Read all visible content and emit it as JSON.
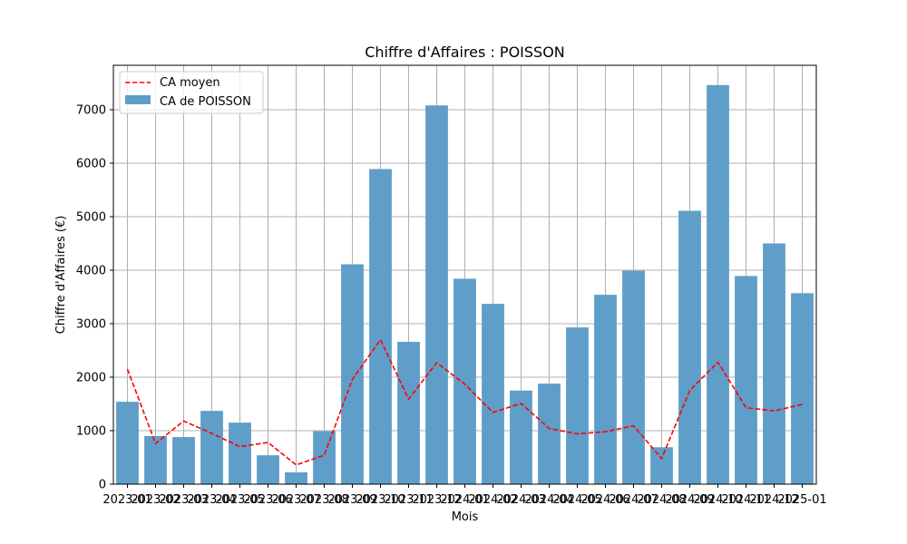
{
  "chart_data": {
    "type": "bar",
    "title": "Chiffre d'Affaires : POISSON",
    "xlabel": "Mois",
    "ylabel": "Chiffre d'Affaires (€)",
    "ylim": [
      0,
      7830
    ],
    "yticks": [
      0,
      1000,
      2000,
      3000,
      4000,
      5000,
      6000,
      7000
    ],
    "grid": true,
    "legend_position": "top-left",
    "categories": [
      "2023-01",
      "2023-02",
      "2023-03",
      "2023-04",
      "2023-05",
      "2023-06",
      "2023-07",
      "2023-08",
      "2023-09",
      "2023-10",
      "2023-11",
      "2023-12",
      "2024-01",
      "2024-02",
      "2024-03",
      "2024-04",
      "2024-05",
      "2024-06",
      "2024-07",
      "2024-08",
      "2024-09",
      "2024-10",
      "2024-11",
      "2024-12",
      "2025-01"
    ],
    "series": [
      {
        "name": "CA moyen",
        "kind": "line",
        "style": "dashed",
        "color": "#ff0000",
        "values": [
          2150,
          760,
          1180,
          950,
          700,
          780,
          360,
          540,
          1960,
          2700,
          1590,
          2270,
          1870,
          1340,
          1510,
          1040,
          940,
          980,
          1090,
          480,
          1750,
          2280,
          1430,
          1370,
          1490
        ]
      },
      {
        "name": "CA de POISSON",
        "kind": "bar",
        "color": "#5f9ec9",
        "values": [
          1540,
          900,
          880,
          1370,
          1150,
          540,
          220,
          990,
          4110,
          5890,
          2660,
          7080,
          3840,
          3370,
          1750,
          1880,
          2930,
          3540,
          3990,
          690,
          5110,
          7460,
          3890,
          4500,
          3570
        ]
      }
    ]
  }
}
